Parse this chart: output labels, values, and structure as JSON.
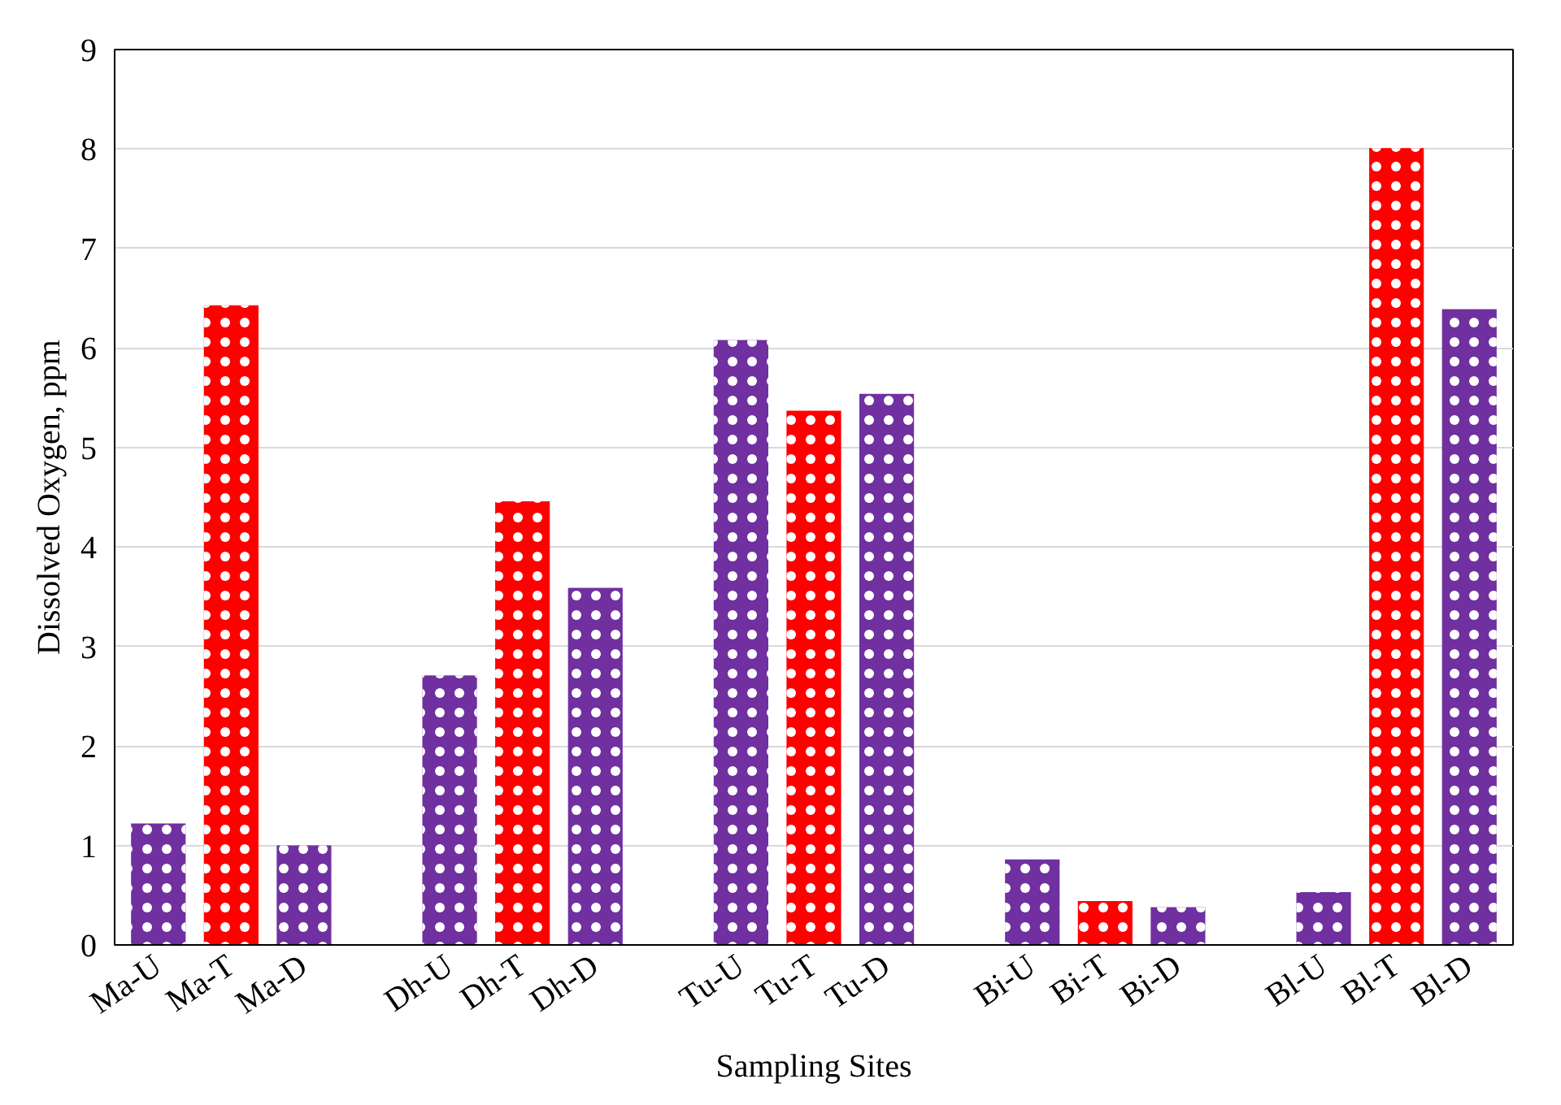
{
  "chart_data": {
    "type": "bar",
    "xlabel": "Sampling Sites",
    "ylabel": "Dissolved Oxygen, ppm",
    "categories": [
      "Ma-U",
      "Ma-T",
      "Ma-D",
      null,
      "Dh-U",
      "Dh-T",
      "Dh-D",
      null,
      "Tu-U",
      "Tu-T",
      "Tu-D",
      null,
      "Bi-U",
      "Bi-T",
      "Bi-D",
      null,
      "Bl-U",
      "Bl-T",
      "Bl-D"
    ],
    "values": [
      1.22,
      6.43,
      1.0,
      null,
      2.71,
      4.46,
      3.59,
      null,
      6.08,
      5.37,
      5.54,
      null,
      0.86,
      0.44,
      0.38,
      null,
      0.53,
      8.01,
      6.39
    ],
    "colors": [
      "#7030a0",
      "#ff0000",
      "#7030a0",
      "#7030a0",
      "#7030a0",
      "#ff0000",
      "#7030a0",
      "#7030a0",
      "#7030a0",
      "#ff0000",
      "#7030a0",
      "#7030a0",
      "#7030a0",
      "#ff0000",
      "#7030a0",
      "#7030a0",
      "#7030a0",
      "#ff0000",
      "#7030a0"
    ],
    "ylim": [
      0,
      9
    ],
    "yticks": [
      0,
      1,
      2,
      3,
      4,
      5,
      6,
      7,
      8,
      9
    ],
    "grid": "y"
  }
}
